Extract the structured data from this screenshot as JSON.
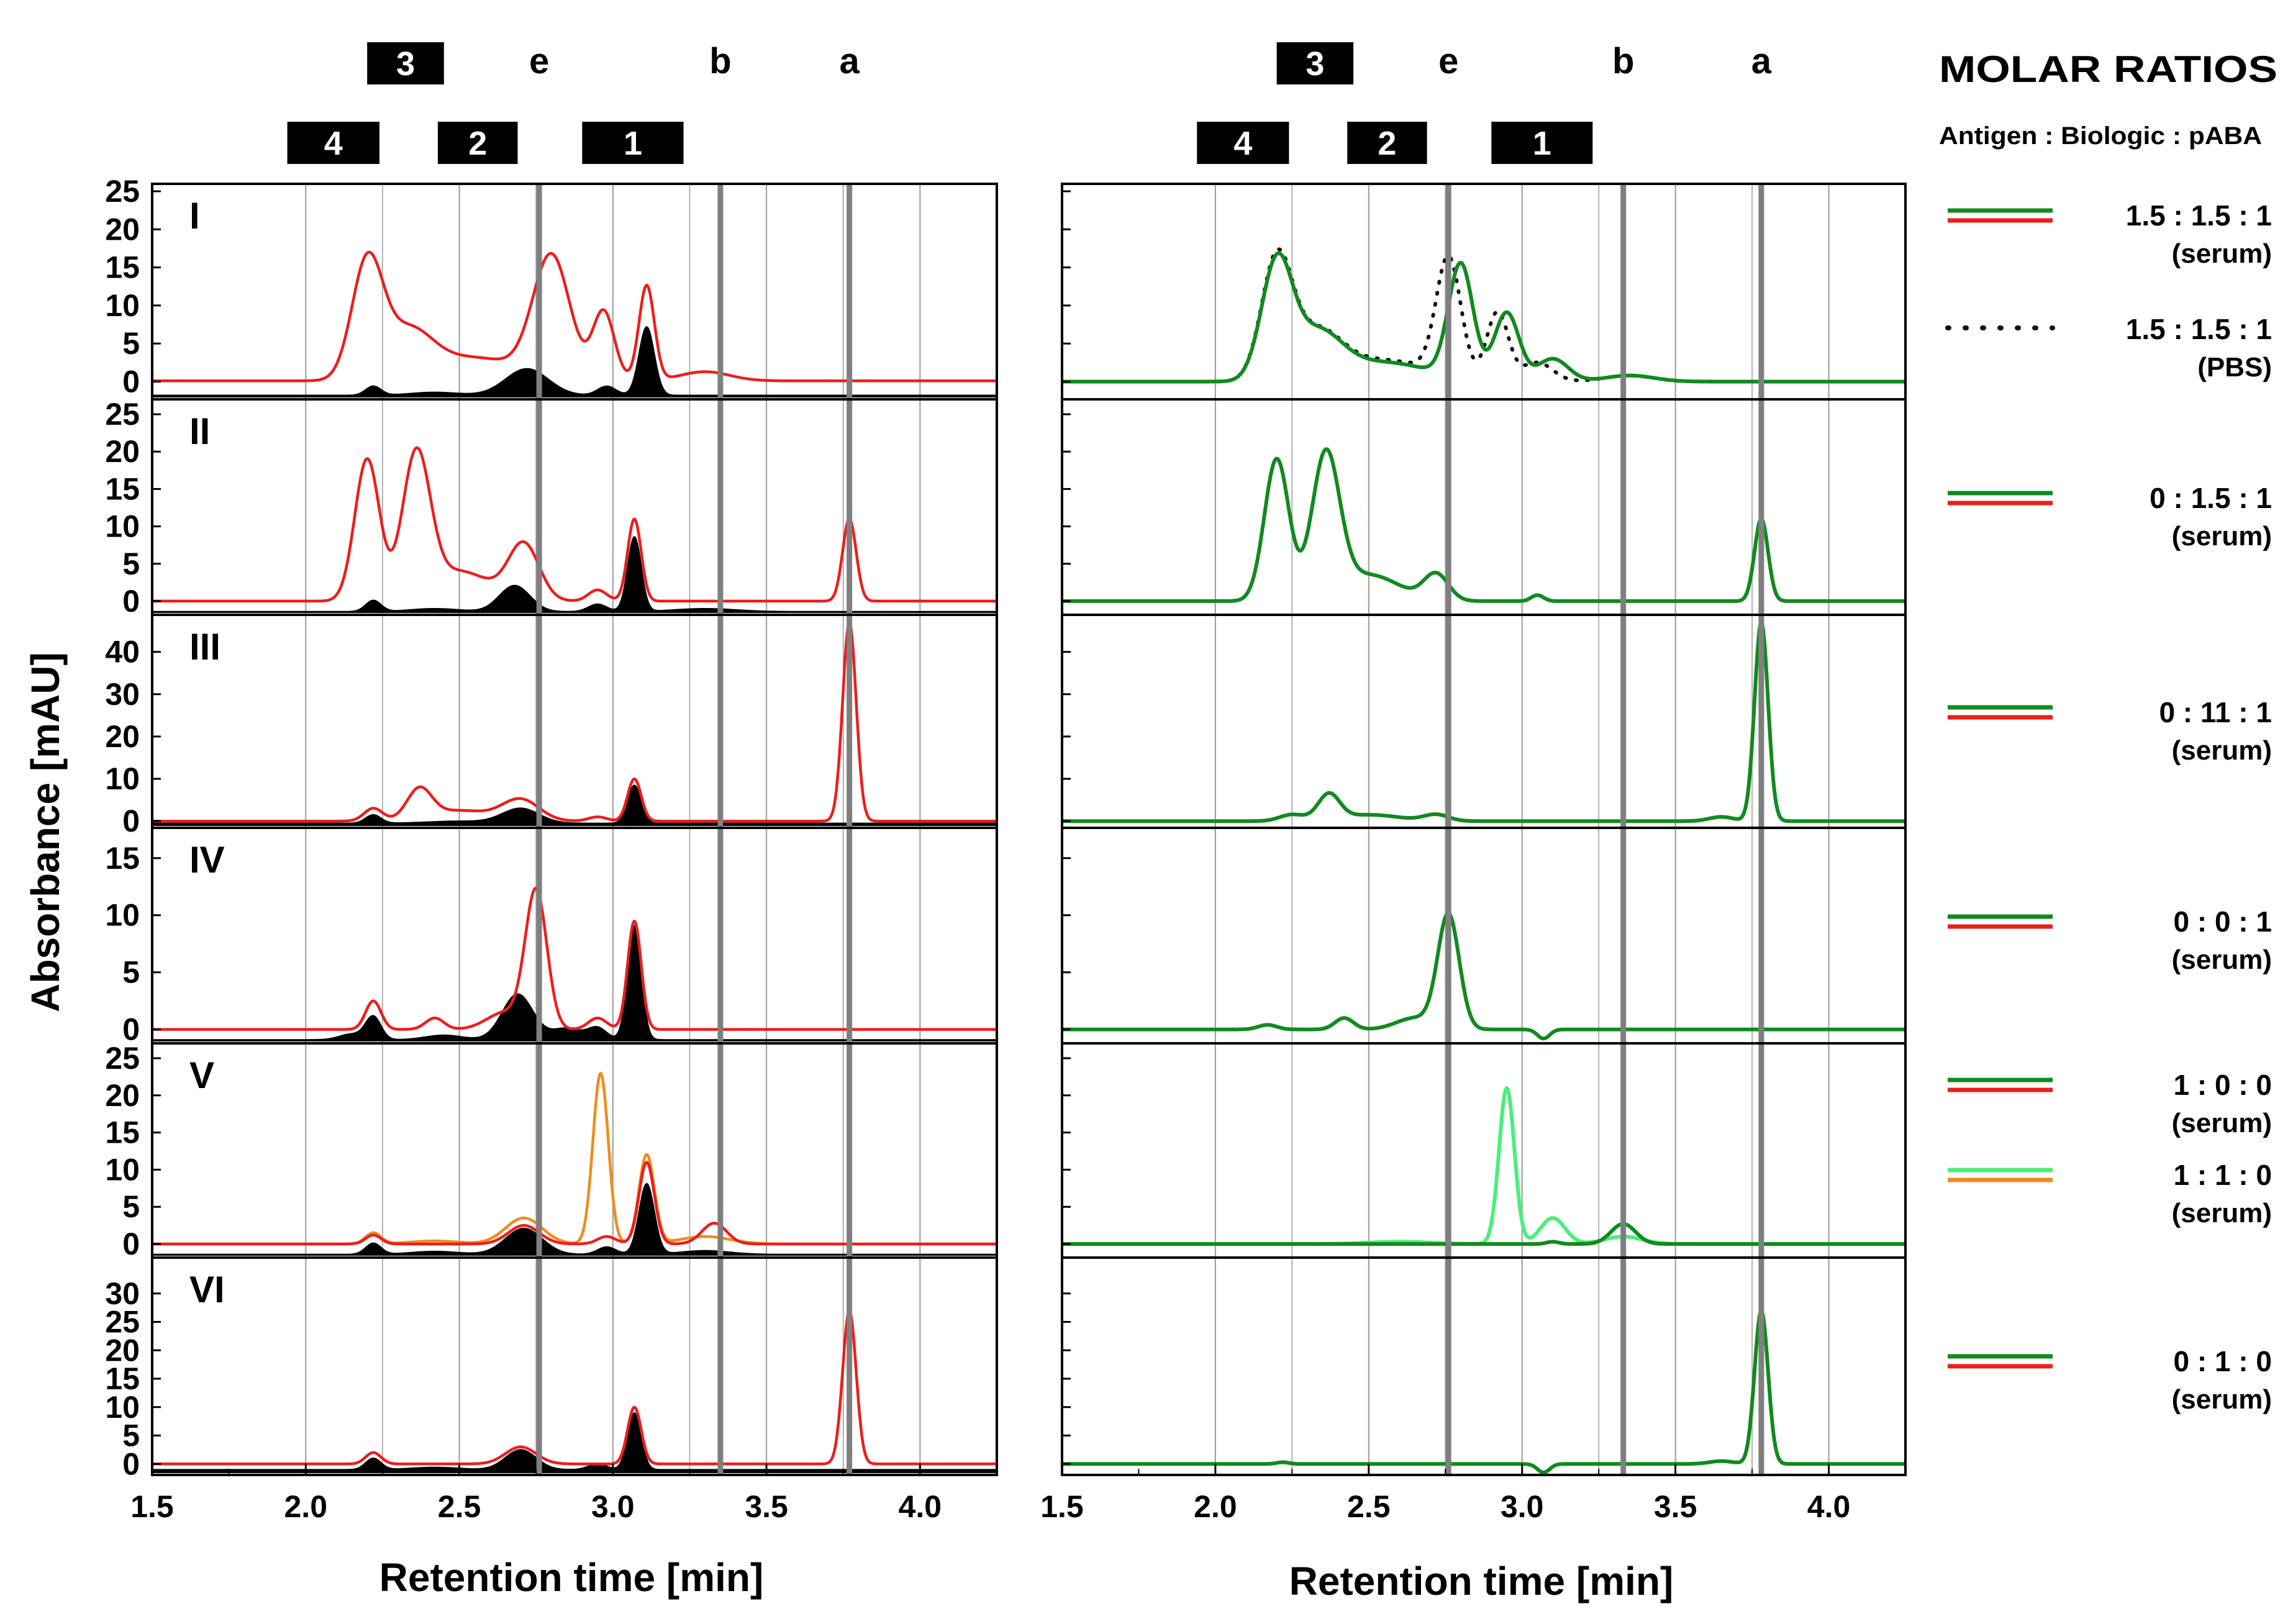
{
  "chart_data": {
    "type": "line",
    "figure_title": "MOLAR RATIOS",
    "legend_subtitle": "Antigen : Biologic : pABA",
    "ylabel": "Absorbance [mAU]",
    "xlabel_left": "Retention time [min]",
    "xlabel_right": "Retention time [min]",
    "xlim": [
      1.5,
      4.25
    ],
    "x_ticks": [
      "1.5",
      "2.0",
      "2.5",
      "3.0",
      "3.5",
      "4.0"
    ],
    "marker_lines": [
      {
        "label": "e",
        "x_left": 2.76,
        "x_right": 2.76
      },
      {
        "label": "b",
        "x_left": 3.35,
        "x_right": 3.33
      },
      {
        "label": "a",
        "x_left": 3.77,
        "x_right": 3.78
      }
    ],
    "fraction_boxes": [
      {
        "label": "3",
        "row": "top",
        "x_start": 2.2,
        "x_end": 2.45
      },
      {
        "label": "4",
        "row": "bottom",
        "x_start": 1.94,
        "x_end": 2.24
      },
      {
        "label": "2",
        "row": "bottom",
        "x_start": 2.43,
        "x_end": 2.69
      },
      {
        "label": "1",
        "row": "bottom",
        "x_start": 2.9,
        "x_end": 3.23
      }
    ],
    "panels": [
      {
        "id": "I",
        "ylim": [
          -2,
          25
        ],
        "yticks": [
          "25",
          "20",
          "15",
          "10",
          "5",
          "0"
        ],
        "ratio": "1.5  :  1.5  :  1",
        "ratio_sub": "(serum)",
        "ratio2": "1.5  :  1.5  :  1",
        "ratio2_sub": "(PBS)",
        "legend_colors": [
          "#118a1e",
          "#ee1c1c"
        ],
        "left": {
          "filled": {
            "baseline": -1.8,
            "peaks": [
              [
                2.22,
                1.2,
                0.025
              ],
              [
                2.42,
                0.4,
                0.08
              ],
              [
                2.72,
                3.5,
                0.07
              ],
              [
                2.98,
                1.2,
                0.03
              ],
              [
                3.11,
                9.0,
                0.025
              ]
            ]
          },
          "red": {
            "baseline": 0.1,
            "peaks": [
              [
                2.2,
                15.0,
                0.05
              ],
              [
                2.33,
                6.0,
                0.08
              ],
              [
                2.55,
                3.0,
                0.15
              ],
              [
                2.8,
                16.0,
                0.06
              ],
              [
                2.97,
                9.0,
                0.035
              ],
              [
                3.11,
                12.5,
                0.025
              ],
              [
                3.3,
                1.2,
                0.08
              ]
            ]
          }
        },
        "right": {
          "green": {
            "baseline": 0.0,
            "peaks": [
              [
                2.2,
                15.0,
                0.05
              ],
              [
                2.33,
                6.0,
                0.08
              ],
              [
                2.55,
                2.5,
                0.15
              ],
              [
                2.8,
                15.0,
                0.04
              ],
              [
                2.95,
                9.0,
                0.04
              ],
              [
                3.1,
                3.0,
                0.05
              ],
              [
                3.35,
                0.8,
                0.08
              ]
            ]
          },
          "dotted": {
            "baseline": 0.0,
            "peaks": [
              [
                2.2,
                15.5,
                0.05
              ],
              [
                2.33,
                6.0,
                0.08
              ],
              [
                2.55,
                2.8,
                0.15
              ],
              [
                2.76,
                15.5,
                0.04
              ],
              [
                2.92,
                9.0,
                0.035
              ],
              [
                3.05,
                2.5,
                0.05
              ],
              [
                3.35,
                0.8,
                0.08
              ]
            ]
          }
        }
      },
      {
        "id": "II",
        "ylim": [
          -1.5,
          26
        ],
        "yticks": [
          "25",
          "20",
          "15",
          "10",
          "5",
          "0"
        ],
        "ratio": "0  :  1.5  :  1",
        "ratio_sub": "(serum)",
        "legend_colors": [
          "#118a1e",
          "#ee1c1c"
        ],
        "left": {
          "filled": {
            "baseline": -1.4,
            "peaks": [
              [
                2.22,
                1.5,
                0.025
              ],
              [
                2.42,
                0.4,
                0.08
              ],
              [
                2.68,
                3.5,
                0.05
              ],
              [
                2.95,
                1.0,
                0.03
              ],
              [
                3.07,
                10.0,
                0.022
              ],
              [
                3.3,
                0.4,
                0.1
              ]
            ]
          },
          "red": {
            "baseline": 0.0,
            "peaks": [
              [
                2.2,
                19.0,
                0.04
              ],
              [
                2.36,
                19.0,
                0.045
              ],
              [
                2.5,
                4.0,
                0.1
              ],
              [
                2.71,
                7.5,
                0.05
              ],
              [
                2.95,
                1.5,
                0.03
              ],
              [
                3.07,
                11.0,
                0.022
              ],
              [
                3.77,
                11.0,
                0.022
              ]
            ]
          }
        },
        "right": {
          "green": {
            "baseline": 0.0,
            "peaks": [
              [
                2.2,
                19.0,
                0.04
              ],
              [
                2.36,
                19.0,
                0.045
              ],
              [
                2.5,
                3.5,
                0.1
              ],
              [
                2.72,
                3.5,
                0.04
              ],
              [
                3.05,
                0.8,
                0.02
              ],
              [
                3.78,
                11.0,
                0.022
              ]
            ]
          }
        }
      },
      {
        "id": "III",
        "ylim": [
          -1,
          47
        ],
        "yticks": [
          "40",
          "30",
          "20",
          "10",
          "0"
        ],
        "ratio": "0  :  11  :  1",
        "ratio_sub": "(serum)",
        "legend_colors": [
          "#118a1e",
          "#ee1c1c"
        ],
        "left": {
          "filled": {
            "baseline": -0.5,
            "peaks": [
              [
                2.22,
                2.0,
                0.025
              ],
              [
                2.5,
                0.5,
                0.1
              ],
              [
                2.7,
                3.5,
                0.06
              ],
              [
                3.07,
                9.0,
                0.022
              ]
            ]
          },
          "red": {
            "baseline": 0.0,
            "peaks": [
              [
                2.22,
                3.0,
                0.03
              ],
              [
                2.37,
                7.0,
                0.04
              ],
              [
                2.5,
                2.5,
                0.1
              ],
              [
                2.7,
                5.0,
                0.06
              ],
              [
                2.95,
                1.0,
                0.03
              ],
              [
                3.07,
                10.0,
                0.022
              ],
              [
                3.77,
                47.0,
                0.022
              ]
            ]
          }
        },
        "right": {
          "green": {
            "baseline": 0.0,
            "peaks": [
              [
                2.25,
                1.5,
                0.04
              ],
              [
                2.37,
                6.0,
                0.035
              ],
              [
                2.5,
                1.5,
                0.1
              ],
              [
                2.72,
                1.5,
                0.04
              ],
              [
                3.65,
                1.0,
                0.04
              ],
              [
                3.78,
                47.0,
                0.022
              ]
            ]
          }
        }
      },
      {
        "id": "IV",
        "ylim": [
          -1,
          17
        ],
        "yticks": [
          "15",
          "10",
          "5",
          "0"
        ],
        "ratio": "0  :  0  :  1",
        "ratio_sub": "(serum)",
        "legend_colors": [
          "#118a1e",
          "#ee1c1c"
        ],
        "left": {
          "filled": {
            "baseline": -0.9,
            "peaks": [
              [
                2.22,
                2.0,
                0.025
              ],
              [
                2.15,
                0.5,
                0.04
              ],
              [
                2.45,
                0.4,
                0.06
              ],
              [
                2.69,
                4.0,
                0.05
              ],
              [
                2.85,
                1.0,
                0.05
              ],
              [
                2.95,
                1.0,
                0.03
              ],
              [
                3.07,
                10.0,
                0.022
              ]
            ]
          },
          "red": {
            "baseline": 0.0,
            "peaks": [
              [
                2.22,
                2.5,
                0.025
              ],
              [
                2.42,
                1.0,
                0.03
              ],
              [
                2.75,
                12.0,
                0.035
              ],
              [
                2.65,
                1.5,
                0.06
              ],
              [
                2.95,
                1.0,
                0.03
              ],
              [
                3.07,
                9.5,
                0.022
              ]
            ]
          }
        },
        "right": {
          "green": {
            "baseline": 0.0,
            "peaks": [
              [
                2.17,
                0.4,
                0.03
              ],
              [
                2.42,
                1.0,
                0.03
              ],
              [
                2.76,
                10.0,
                0.035
              ],
              [
                2.65,
                1.0,
                0.06
              ],
              [
                3.07,
                -0.8,
                0.02
              ]
            ]
          }
        }
      },
      {
        "id": "V",
        "ylim": [
          -1.5,
          26
        ],
        "yticks": [
          "25",
          "20",
          "15",
          "10",
          "5",
          "0"
        ],
        "ratio": "1  :  0  :  0",
        "ratio_sub": "(serum)",
        "legend_colors": [
          "#118a1e",
          "#ee1c1c"
        ],
        "ratio2": "1  :  1  :  0",
        "ratio2_sub": "(serum)",
        "legend2_colors": [
          "#49ef79",
          "#f18b1b"
        ],
        "left": {
          "filled": {
            "baseline": -1.4,
            "peaks": [
              [
                2.22,
                1.5,
                0.025
              ],
              [
                2.42,
                0.4,
                0.08
              ],
              [
                2.71,
                3.5,
                0.06
              ],
              [
                2.98,
                1.0,
                0.03
              ],
              [
                3.11,
                9.5,
                0.025
              ],
              [
                3.3,
                0.5,
                0.08
              ]
            ]
          },
          "red": {
            "baseline": 0.0,
            "peaks": [
              [
                2.22,
                1.2,
                0.025
              ],
              [
                2.71,
                2.5,
                0.05
              ],
              [
                2.98,
                1.0,
                0.03
              ],
              [
                3.11,
                11.0,
                0.025
              ],
              [
                3.33,
                2.8,
                0.04
              ]
            ]
          },
          "orange": {
            "baseline": 0.0,
            "peaks": [
              [
                2.22,
                1.5,
                0.025
              ],
              [
                2.42,
                0.4,
                0.08
              ],
              [
                2.71,
                3.5,
                0.06
              ],
              [
                2.96,
                23.0,
                0.025
              ],
              [
                3.11,
                12.0,
                0.025
              ],
              [
                3.3,
                1.0,
                0.08
              ]
            ]
          }
        },
        "right": {
          "green": {
            "baseline": 0.0,
            "peaks": [
              [
                3.33,
                2.7,
                0.04
              ],
              [
                3.1,
                0.3,
                0.02
              ]
            ]
          },
          "lightgreen": {
            "baseline": 0.0,
            "peaks": [
              [
                2.6,
                0.3,
                0.1
              ],
              [
                2.95,
                21.0,
                0.025
              ],
              [
                3.1,
                3.5,
                0.04
              ],
              [
                3.33,
                1.0,
                0.06
              ]
            ]
          }
        }
      },
      {
        "id": "VI",
        "ylim": [
          -1.5,
          35
        ],
        "yticks": [
          "30",
          "25",
          "20",
          "15",
          "10",
          "5",
          "0"
        ],
        "ratio": "0  :  1  :  0",
        "ratio_sub": "(serum)",
        "legend_colors": [
          "#118a1e",
          "#ee1c1c"
        ],
        "left": {
          "filled": {
            "baseline": -1.0,
            "peaks": [
              [
                2.22,
                2.0,
                0.025
              ],
              [
                2.42,
                0.4,
                0.08
              ],
              [
                2.7,
                3.5,
                0.05
              ],
              [
                2.95,
                1.0,
                0.03
              ],
              [
                3.07,
                10.0,
                0.022
              ]
            ]
          },
          "red": {
            "baseline": 0.0,
            "peaks": [
              [
                2.22,
                2.0,
                0.025
              ],
              [
                2.7,
                3.0,
                0.05
              ],
              [
                3.07,
                10.0,
                0.022
              ],
              [
                3.77,
                27.0,
                0.022
              ]
            ]
          }
        },
        "right": {
          "green": {
            "baseline": 0.0,
            "peaks": [
              [
                2.22,
                0.3,
                0.02
              ],
              [
                3.07,
                -1.5,
                0.02
              ],
              [
                3.65,
                0.5,
                0.04
              ],
              [
                3.78,
                27.0,
                0.022
              ]
            ]
          }
        }
      }
    ]
  }
}
